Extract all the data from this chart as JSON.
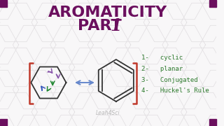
{
  "background_color": "#f8f7f8",
  "title_line1": "AROMATICITY",
  "title_line2": "PART ",
  "title_part_number": "1",
  "title_color": "#6b0f5e",
  "title_fontsize": 16,
  "title2_fontsize": 16,
  "hex_line_color": "#e0dde0",
  "list_items": [
    "1-   cyclic",
    "2-   planar",
    "3-   Conjugated",
    "4-   Huckel's Rule"
  ],
  "list_color": "#2d7a2d",
  "list_fontsize": 6.5,
  "bracket_color": "#c0392b",
  "double_arrow_color": "#6688cc",
  "watermark": "Leah4Sci",
  "watermark_color": "#bbbbbb",
  "corner_square_color": "#6b0f5e",
  "benzene_line_color": "#333333",
  "curly_purple": "#8855aa",
  "curly_green": "#228833",
  "curly_blue": "#3355bb"
}
